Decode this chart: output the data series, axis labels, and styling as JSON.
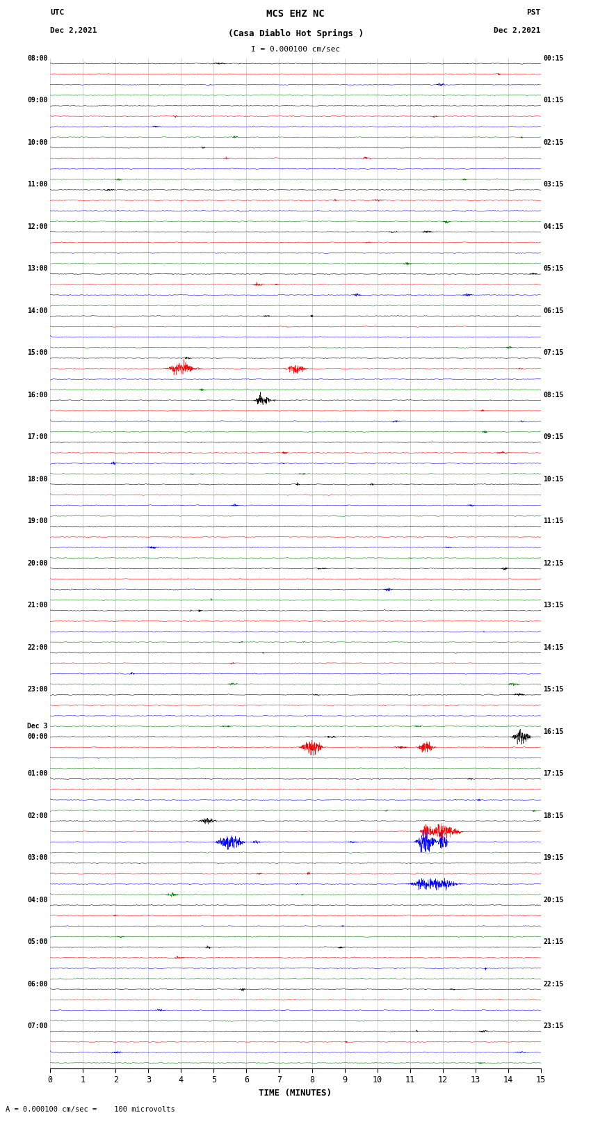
{
  "title_line1": "MCS EHZ NC",
  "title_line2": "(Casa Diablo Hot Springs )",
  "scale_text": "I = 0.000100 cm/sec",
  "bottom_text": "= 0.000100 cm/sec =    100 microvolts",
  "utc_label": "UTC",
  "utc_date": "Dec 2,2021",
  "pst_label": "PST",
  "pst_date": "Dec 2,2021",
  "xlabel": "TIME (MINUTES)",
  "left_times": [
    "08:00",
    "09:00",
    "10:00",
    "11:00",
    "12:00",
    "13:00",
    "14:00",
    "15:00",
    "16:00",
    "17:00",
    "18:00",
    "19:00",
    "20:00",
    "21:00",
    "22:00",
    "23:00",
    "Dec 3\n00:00",
    "01:00",
    "02:00",
    "03:00",
    "04:00",
    "05:00",
    "06:00",
    "07:00"
  ],
  "right_times": [
    "00:15",
    "01:15",
    "02:15",
    "03:15",
    "04:15",
    "05:15",
    "06:15",
    "07:15",
    "08:15",
    "09:15",
    "10:15",
    "11:15",
    "12:15",
    "13:15",
    "14:15",
    "15:15",
    "16:15",
    "17:15",
    "18:15",
    "19:15",
    "20:15",
    "21:15",
    "22:15",
    "23:15"
  ],
  "trace_colors": [
    "black",
    "red",
    "blue",
    "green"
  ],
  "bg_color": "white",
  "n_rows": 24,
  "traces_per_row": 4,
  "xlim": [
    0,
    15
  ],
  "x_ticks": [
    0,
    1,
    2,
    3,
    4,
    5,
    6,
    7,
    8,
    9,
    10,
    11,
    12,
    13,
    14,
    15
  ],
  "figwidth": 8.5,
  "figheight": 16.13,
  "noise_level": 0.06,
  "trace_scale": 0.32,
  "seed": 42
}
